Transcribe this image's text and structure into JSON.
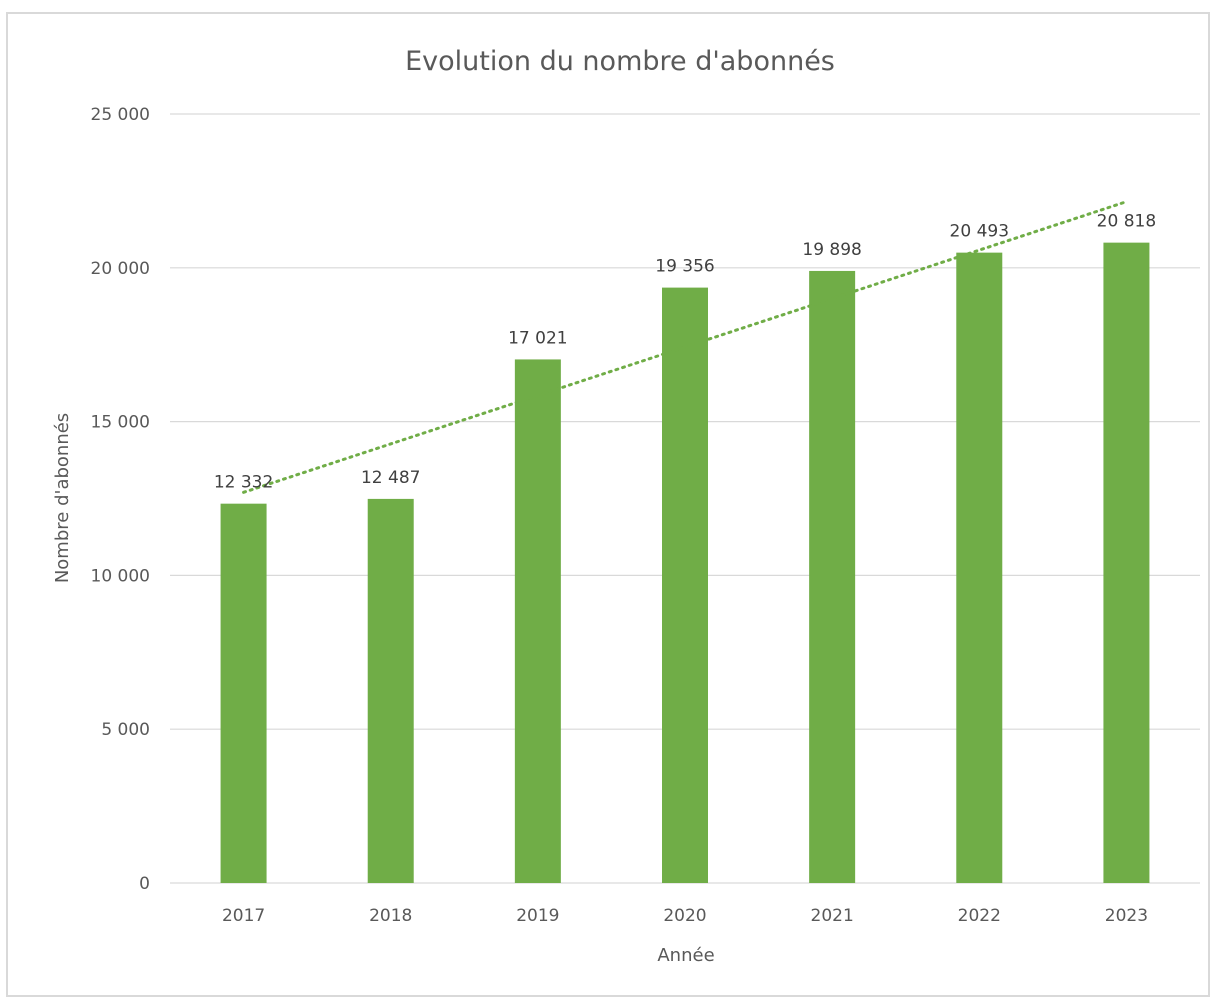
{
  "chart_data": {
    "type": "bar",
    "title": "Evolution du nombre d'abonnés",
    "xlabel": "Année",
    "ylabel": "Nombre d'abonnés",
    "categories": [
      "2017",
      "2018",
      "2019",
      "2020",
      "2021",
      "2022",
      "2023"
    ],
    "values": [
      12332,
      12487,
      17021,
      19356,
      19898,
      20493,
      20818
    ],
    "value_labels": [
      "12 332",
      "12 487",
      "17 021",
      "19 356",
      "19 898",
      "20 493",
      "20 818"
    ],
    "ylim": [
      0,
      25000
    ],
    "y_ticks": [
      0,
      5000,
      10000,
      15000,
      20000,
      25000
    ],
    "y_tick_labels": [
      "0",
      "5 000",
      "10 000",
      "15 000",
      "20 000",
      "25 000"
    ],
    "grid": true,
    "legend": "none",
    "trendline": {
      "type": "linear",
      "style": "dotted",
      "start_value": 12700,
      "end_value": 22150
    },
    "colors": {
      "bar": "#70ad47",
      "trendline": "#70ad47",
      "grid": "#d9d9d9"
    }
  }
}
